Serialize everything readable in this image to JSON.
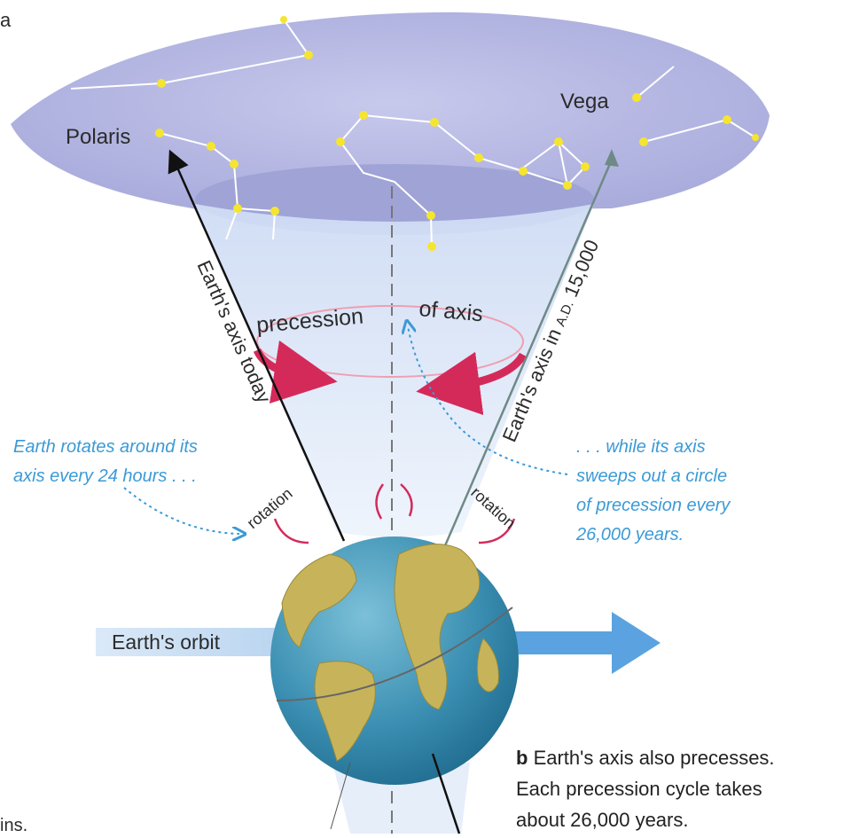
{
  "frag_top": "a",
  "frag_bottom": "ins.",
  "stars": {
    "polaris": "Polaris",
    "vega": "Vega"
  },
  "axis": {
    "today": "Earth's axis today",
    "future_prefix": "Earth's axis in ",
    "future_era": "A.D.",
    "future_year": " 15,000"
  },
  "precession": {
    "word1": "precession",
    "word2": "of axis"
  },
  "rotation_label": "rotation",
  "note_left": [
    "Earth rotates around its",
    "axis every 24 hours . . ."
  ],
  "note_right": [
    ". . . while its axis",
    "sweeps out a circle",
    "of precession every",
    "26,000 years."
  ],
  "orbit_label": "Earth's orbit",
  "caption": {
    "letter": "b",
    "line1": " Earth's axis also precesses.",
    "line2": "Each precession cycle takes",
    "line3": "about 26,000 years."
  },
  "colors": {
    "sky": "#b7b9e3",
    "sky_inner": "#a3a6d8",
    "cone": "#dde8f8",
    "star": "#f5e530",
    "precession_arrow": "#d42a5a",
    "note_blue": "#3b9ad6",
    "orbit_arrow": "#5aa3e0",
    "ocean": "#3d92b4",
    "land": "#c7b45a"
  }
}
